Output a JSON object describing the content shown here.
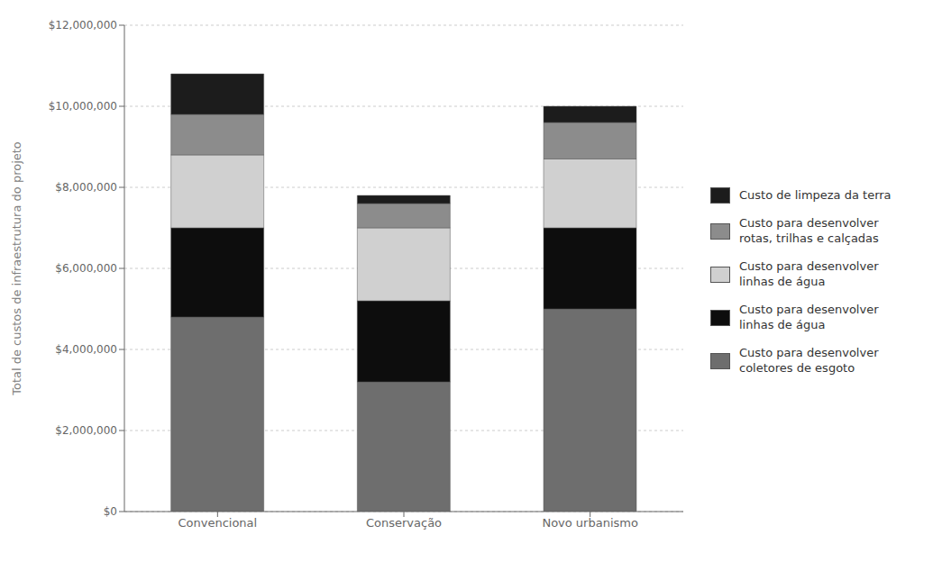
{
  "chart_data": {
    "type": "bar",
    "stacked": true,
    "grid": true,
    "legend": "right",
    "categories": [
      "Convencional",
      "Conservação",
      "Novo urbanismo"
    ],
    "series": [
      {
        "name": "Custo de limpeza da terra",
        "color": "#1c1c1c",
        "values": [
          1000000,
          200000,
          400000
        ]
      },
      {
        "name": "Custo para desenvolver\nrotas, trilhas e calçadas",
        "color": "#8c8c8c",
        "values": [
          1000000,
          600000,
          900000
        ]
      },
      {
        "name": "Custo para desenvolver\nlinhas de água",
        "color": "#d0d0d0",
        "values": [
          1800000,
          1800000,
          1700000
        ]
      },
      {
        "name": "Custo para desenvolver\nlinhas de água",
        "color": "#0d0d0d",
        "values": [
          2200000,
          2000000,
          2000000
        ]
      },
      {
        "name": "Custo para desenvolver\ncoletores de esgoto",
        "color": "#6e6e6e",
        "values": [
          4800000,
          3200000,
          5000000
        ]
      }
    ],
    "ylabel": "Total de custos de infraestrutura do projeto",
    "ylim": [
      0,
      12000000
    ],
    "yticks": [
      {
        "value": 0,
        "label": "$0"
      },
      {
        "value": 2000000,
        "label": "$2,000,000"
      },
      {
        "value": 4000000,
        "label": "$4,000,000"
      },
      {
        "value": 6000000,
        "label": "$6,000,000"
      },
      {
        "value": 8000000,
        "label": "$8,000,000"
      },
      {
        "value": 10000000,
        "label": "$10,000,000"
      },
      {
        "value": 12000000,
        "label": "$12,000,000"
      }
    ]
  }
}
